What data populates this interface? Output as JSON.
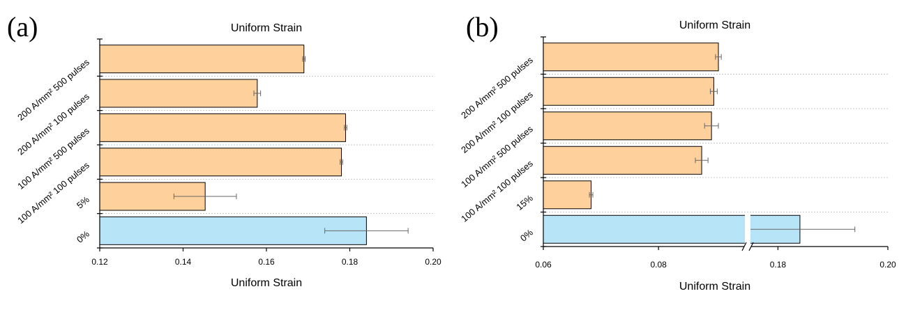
{
  "chart_data": [
    {
      "type": "bar",
      "orientation": "horizontal",
      "panel_label": "(a)",
      "title": "Uniform Strain",
      "xlabel": "Uniform Strain",
      "ylabel": "",
      "xlim": [
        0.12,
        0.2
      ],
      "xticks": [
        "0.12",
        "0.14",
        "0.16",
        "0.18",
        "0.20"
      ],
      "xtick_values": [
        0.12,
        0.14,
        0.16,
        0.18,
        0.2
      ],
      "grid": "horizontal dotted",
      "categories": [
        "200 A/mm² 500 pulses",
        "200 A/mm² 100 pulses",
        "100 A/mm² 500 pulses",
        "100 A/mm² 100 pulses",
        "5%",
        "0%"
      ],
      "values": [
        0.169,
        0.1578,
        0.179,
        0.178,
        0.1453,
        0.184
      ],
      "errors": [
        0.0003,
        0.0008,
        0.0003,
        0.0003,
        0.0075,
        0.01
      ],
      "colors": [
        "#fdd09c",
        "#fdd09c",
        "#fdd09c",
        "#fdd09c",
        "#fdd09c",
        "#b8e4f8"
      ]
    },
    {
      "type": "bar",
      "orientation": "horizontal",
      "panel_label": "(b)",
      "title": "Uniform Strain",
      "xlabel": "Uniform Strain",
      "ylabel": "",
      "xlim": [
        0.06,
        0.2
      ],
      "axis_break": true,
      "xticks": [
        "0.06",
        "0.08",
        "0.18",
        "0.20"
      ],
      "grid": "horizontal dotted",
      "categories": [
        "200 A/mm² 500 pulses",
        "200 A/mm² 100 pulses",
        "100 A/mm² 500 pulses",
        "100 A/mm² 100 pulses",
        "15%",
        "0%"
      ],
      "values": [
        0.0904,
        0.0896,
        0.0892,
        0.0875,
        0.0683,
        0.184
      ],
      "errors": [
        0.0005,
        0.0006,
        0.0012,
        0.0011,
        0.0003,
        0.01
      ],
      "colors": [
        "#fdd09c",
        "#fdd09c",
        "#fdd09c",
        "#fdd09c",
        "#fdd09c",
        "#b8e4f8"
      ]
    }
  ]
}
